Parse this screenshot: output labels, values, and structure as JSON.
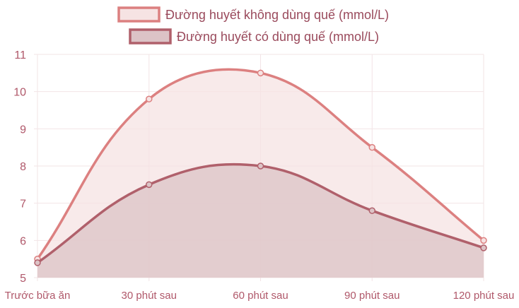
{
  "chart_data": {
    "type": "line",
    "title": "",
    "xlabel": "",
    "ylabel": "",
    "categories": [
      "Trước bữa ăn",
      "30 phút sau",
      "60 phút sau",
      "90 phút sau",
      "120 phút sau"
    ],
    "ylim": [
      5,
      11
    ],
    "yticks": [
      5,
      6,
      7,
      8,
      9,
      10,
      11
    ],
    "grid": true,
    "legend_position": "top-center",
    "series": [
      {
        "name": "Đường huyết không dùng quế (mmol/L)",
        "values": [
          5.5,
          9.8,
          10.5,
          8.5,
          6.0
        ],
        "line_color": "#dc8080",
        "fill_color": "#f6e3e3"
      },
      {
        "name": "Đường huyết có dùng quế (mmol/L)",
        "values": [
          5.4,
          7.5,
          8.0,
          6.8,
          5.8
        ],
        "line_color": "#b0606b",
        "fill_color": "#dcc3c6"
      }
    ],
    "text_color": "#b0586a"
  }
}
